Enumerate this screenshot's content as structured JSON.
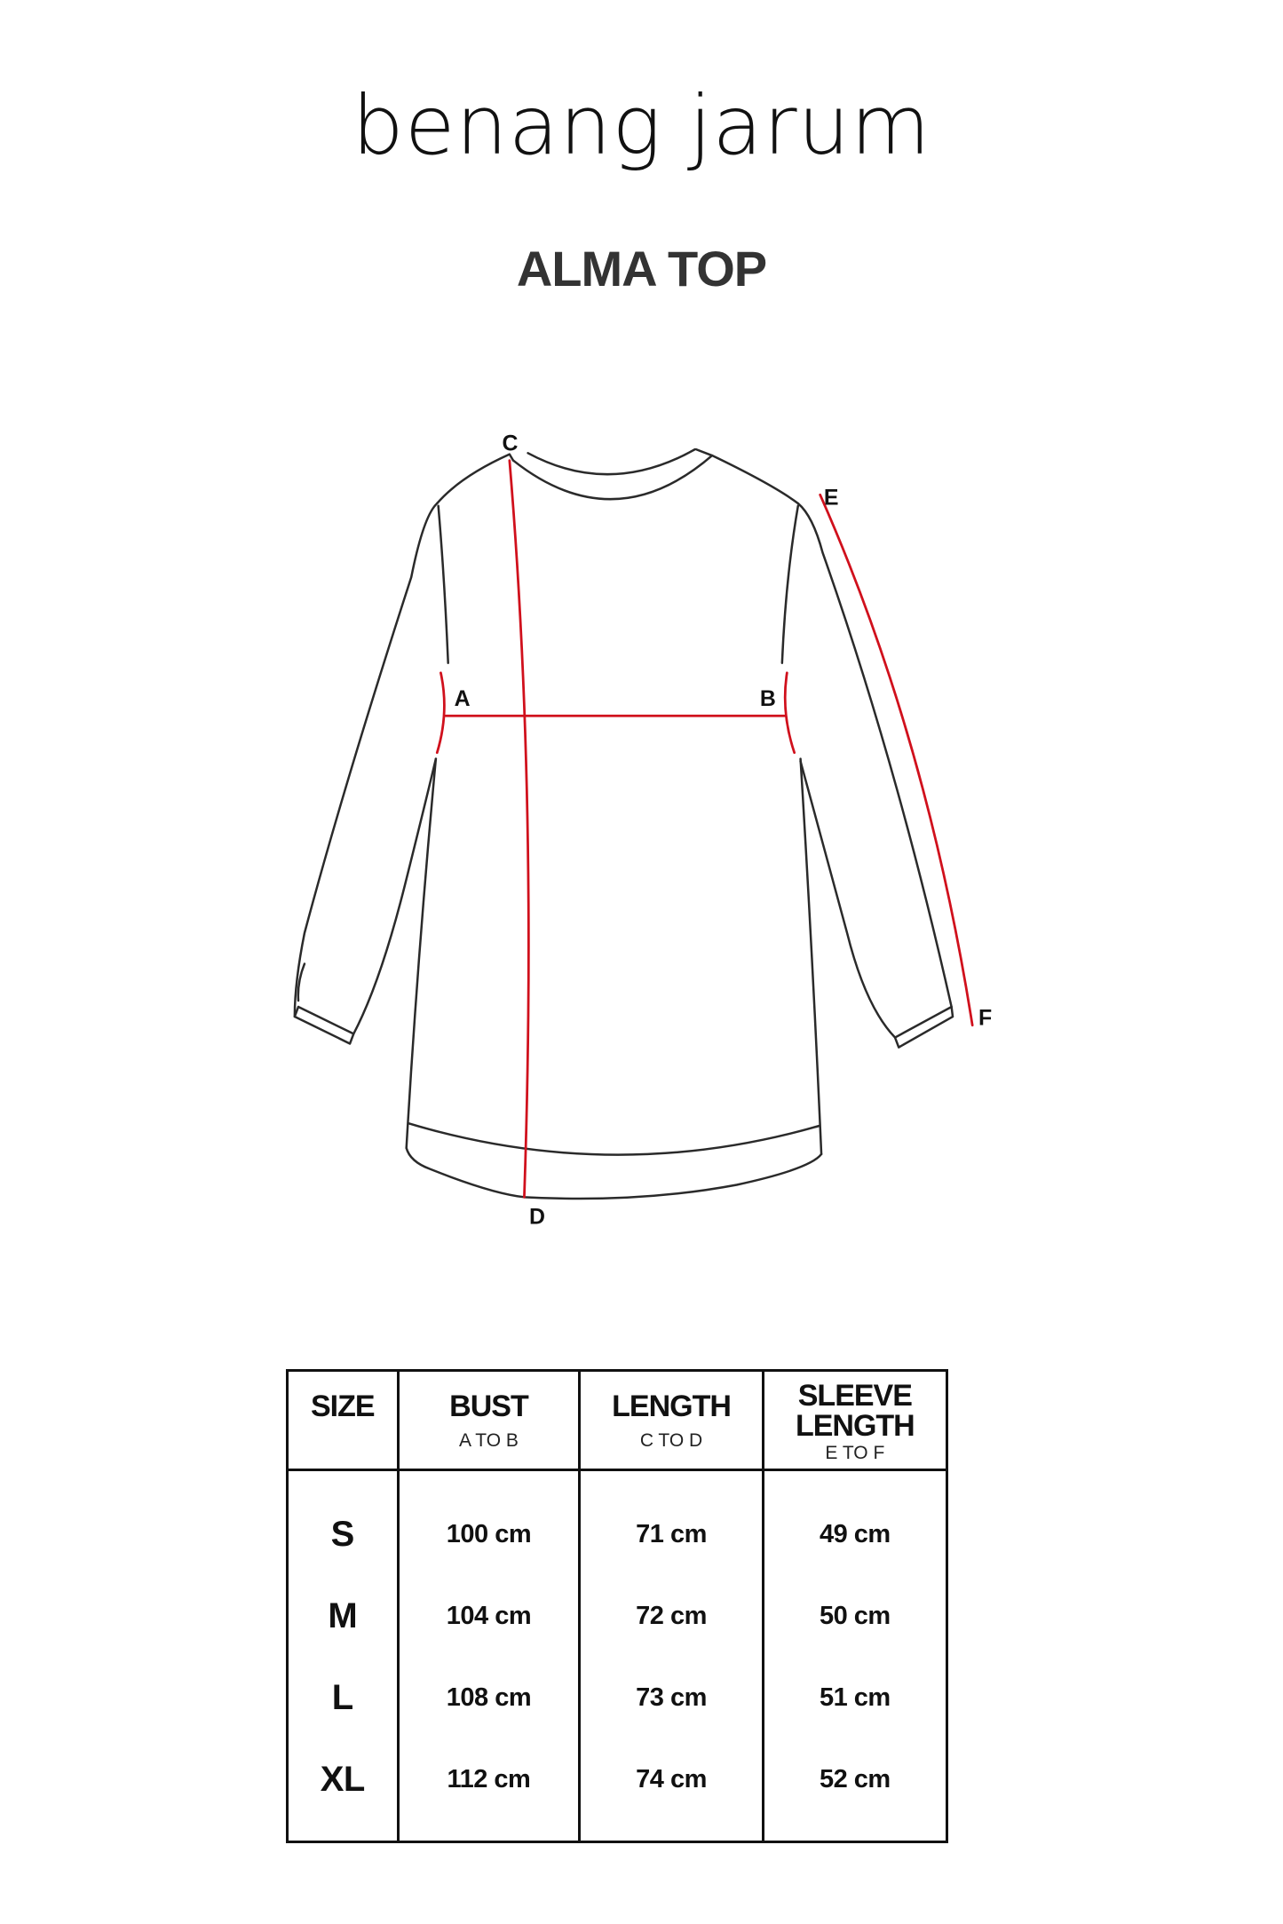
{
  "brand": {
    "logo_text": "benang jarum"
  },
  "title": "ALMA TOP",
  "diagram": {
    "labels": {
      "a": "A",
      "b": "B",
      "c": "C",
      "d": "D",
      "e": "E",
      "f": "F"
    },
    "colors": {
      "outline": "#2a2a2a",
      "measure": "#d0101c"
    }
  },
  "table": {
    "headers": [
      {
        "title": "SIZE",
        "sub": ""
      },
      {
        "title": "BUST",
        "sub": "A TO B"
      },
      {
        "title": "LENGTH",
        "sub": "C TO D"
      },
      {
        "title": "SLEEVE LENGTH",
        "title_line1": "SLEEVE",
        "title_line2": "LENGTH",
        "sub": "E TO F"
      }
    ],
    "rows": [
      {
        "size": "S",
        "bust": "100 cm",
        "length": "71 cm",
        "sleeve": "49 cm"
      },
      {
        "size": "M",
        "bust": "104 cm",
        "length": "72 cm",
        "sleeve": "50 cm"
      },
      {
        "size": "L",
        "bust": "108 cm",
        "length": "73 cm",
        "sleeve": "51 cm"
      },
      {
        "size": "XL",
        "bust": "112 cm",
        "length": "74 cm",
        "sleeve": "52 cm"
      }
    ]
  }
}
